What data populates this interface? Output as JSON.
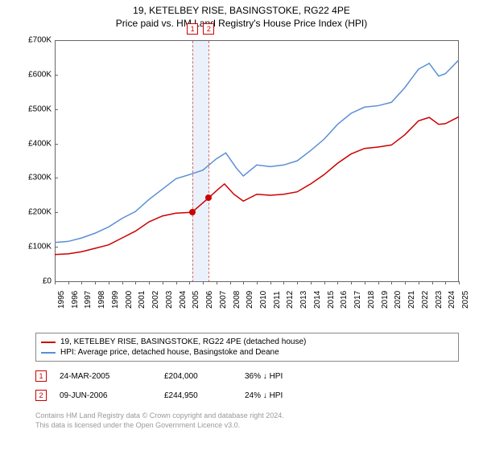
{
  "title": "19, KETELBEY RISE, BASINGSTOKE, RG22 4PE",
  "subtitle": "Price paid vs. HM Land Registry's House Price Index (HPI)",
  "chart": {
    "type": "line",
    "background_color": "#ffffff",
    "axis_color": "#666666",
    "text_color": "#000000",
    "ylim": [
      0,
      700000
    ],
    "ytick_step": 100000,
    "ytick_labels": [
      "£0",
      "£100K",
      "£200K",
      "£300K",
      "£400K",
      "£500K",
      "£600K",
      "£700K"
    ],
    "xlim": [
      1995,
      2025
    ],
    "xtick_step": 1,
    "xtick_labels": [
      "1995",
      "1996",
      "1997",
      "1998",
      "1999",
      "2000",
      "2001",
      "2002",
      "2003",
      "2004",
      "2005",
      "2006",
      "2007",
      "2008",
      "2009",
      "2010",
      "2011",
      "2012",
      "2013",
      "2014",
      "2015",
      "2016",
      "2017",
      "2018",
      "2019",
      "2020",
      "2021",
      "2022",
      "2023",
      "2024",
      "2025"
    ],
    "highlight_band": {
      "xstart": 2005.23,
      "xend": 2006.44,
      "color": "rgba(120,160,220,0.15)"
    },
    "series": [
      {
        "name": "price_paid",
        "label": "19, KETELBEY RISE, BASINGSTOKE, RG22 4PE (detached house)",
        "color": "#cc0000",
        "line_width": 1.5,
        "data": [
          [
            1995.0,
            80000
          ],
          [
            1996.0,
            82000
          ],
          [
            1997.0,
            88000
          ],
          [
            1998.0,
            98000
          ],
          [
            1999.0,
            108000
          ],
          [
            2000.0,
            128000
          ],
          [
            2001.0,
            148000
          ],
          [
            2002.0,
            175000
          ],
          [
            2003.0,
            192000
          ],
          [
            2004.0,
            200000
          ],
          [
            2005.0,
            202000
          ],
          [
            2005.23,
            204000
          ],
          [
            2006.44,
            244950
          ],
          [
            2007.0,
            265000
          ],
          [
            2007.6,
            285000
          ],
          [
            2008.3,
            255000
          ],
          [
            2009.0,
            235000
          ],
          [
            2010.0,
            255000
          ],
          [
            2011.0,
            252000
          ],
          [
            2012.0,
            255000
          ],
          [
            2013.0,
            262000
          ],
          [
            2014.0,
            285000
          ],
          [
            2015.0,
            312000
          ],
          [
            2016.0,
            345000
          ],
          [
            2017.0,
            372000
          ],
          [
            2018.0,
            388000
          ],
          [
            2019.0,
            392000
          ],
          [
            2020.0,
            398000
          ],
          [
            2021.0,
            428000
          ],
          [
            2022.0,
            468000
          ],
          [
            2022.8,
            478000
          ],
          [
            2023.5,
            458000
          ],
          [
            2024.0,
            460000
          ],
          [
            2025.0,
            480000
          ]
        ]
      },
      {
        "name": "hpi",
        "label": "HPI: Average price, detached house, Basingstoke and Deane",
        "color": "#5b8fd6",
        "line_width": 1.5,
        "data": [
          [
            1995.0,
            115000
          ],
          [
            1996.0,
            118000
          ],
          [
            1997.0,
            128000
          ],
          [
            1998.0,
            142000
          ],
          [
            1999.0,
            160000
          ],
          [
            2000.0,
            185000
          ],
          [
            2001.0,
            205000
          ],
          [
            2002.0,
            240000
          ],
          [
            2003.0,
            270000
          ],
          [
            2004.0,
            300000
          ],
          [
            2005.0,
            312000
          ],
          [
            2006.0,
            325000
          ],
          [
            2007.0,
            358000
          ],
          [
            2007.7,
            375000
          ],
          [
            2008.5,
            330000
          ],
          [
            2009.0,
            308000
          ],
          [
            2010.0,
            340000
          ],
          [
            2011.0,
            335000
          ],
          [
            2012.0,
            340000
          ],
          [
            2013.0,
            352000
          ],
          [
            2014.0,
            382000
          ],
          [
            2015.0,
            415000
          ],
          [
            2016.0,
            458000
          ],
          [
            2017.0,
            490000
          ],
          [
            2018.0,
            508000
          ],
          [
            2019.0,
            512000
          ],
          [
            2020.0,
            522000
          ],
          [
            2021.0,
            565000
          ],
          [
            2022.0,
            618000
          ],
          [
            2022.8,
            635000
          ],
          [
            2023.5,
            598000
          ],
          [
            2024.0,
            605000
          ],
          [
            2025.0,
            645000
          ]
        ]
      }
    ],
    "markers": [
      {
        "id": "1",
        "x": 2005.23,
        "y": 204000
      },
      {
        "id": "2",
        "x": 2006.44,
        "y": 244950
      }
    ]
  },
  "data_points": [
    {
      "id": "1",
      "date": "24-MAR-2005",
      "price": "£204,000",
      "pct": "36% ↓ HPI"
    },
    {
      "id": "2",
      "date": "09-JUN-2006",
      "price": "£244,950",
      "pct": "24% ↓ HPI"
    }
  ],
  "footer_line1": "Contains HM Land Registry data © Crown copyright and database right 2024.",
  "footer_line2": "This data is licensed under the Open Government Licence v3.0."
}
